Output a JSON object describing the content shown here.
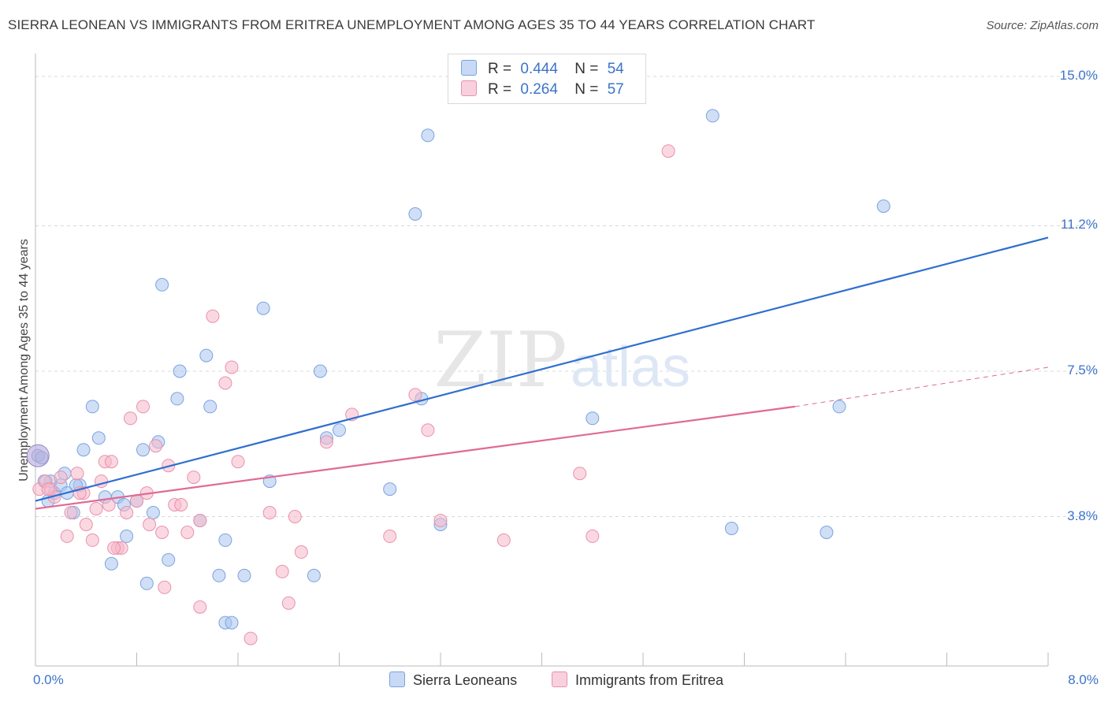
{
  "title": "SIERRA LEONEAN VS IMMIGRANTS FROM ERITREA UNEMPLOYMENT AMONG AGES 35 TO 44 YEARS CORRELATION CHART",
  "source": "Source: ZipAtlas.com",
  "watermark": {
    "zip": "ZIP",
    "atlas": "atlas"
  },
  "legend_top": [
    {
      "r_label": "R =",
      "r_value": "0.444",
      "n_label": "N =",
      "n_value": "54",
      "color": "#a9c4ee"
    },
    {
      "r_label": "R =",
      "r_value": "0.264",
      "n_label": "N =",
      "n_value": "57",
      "color": "#f5b8cb"
    }
  ],
  "legend_bottom": [
    {
      "label": "Sierra Leoneans",
      "color": "#a9c4ee"
    },
    {
      "label": "Immigrants from Eritrea",
      "color": "#f5b8cb"
    }
  ],
  "chart_data": {
    "type": "scatter",
    "title": "SIERRA LEONEAN VS IMMIGRANTS FROM ERITREA UNEMPLOYMENT AMONG AGES 35 TO 44 YEARS CORRELATION CHART",
    "xlabel": "",
    "ylabel": "Unemployment Among Ages 35 to 44 years",
    "xlim": [
      0.0,
      8.0
    ],
    "ylim": [
      0.0,
      15.0
    ],
    "x_tick_labels": {
      "left": "0.0%",
      "right": "8.0%"
    },
    "y_ticks": [
      {
        "value": 15.0,
        "label": "15.0%"
      },
      {
        "value": 11.2,
        "label": "11.2%"
      },
      {
        "value": 7.5,
        "label": "7.5%"
      },
      {
        "value": 3.8,
        "label": "3.8%"
      }
    ],
    "series": [
      {
        "name": "Sierra Leoneans",
        "color": "#a9c4ee",
        "stroke": "#7aa3e0",
        "trend": {
          "x0": 0.0,
          "y0": 4.2,
          "x1": 8.0,
          "y1": 10.9,
          "color": "#2f6fd0"
        },
        "points": [
          [
            0.02,
            5.35
          ],
          [
            0.05,
            5.3
          ],
          [
            0.1,
            4.2
          ],
          [
            0.12,
            4.7
          ],
          [
            0.15,
            4.4
          ],
          [
            0.2,
            4.6
          ],
          [
            0.23,
            4.9
          ],
          [
            0.25,
            4.4
          ],
          [
            0.3,
            3.9
          ],
          [
            0.35,
            4.6
          ],
          [
            0.38,
            5.5
          ],
          [
            0.45,
            6.6
          ],
          [
            0.5,
            5.8
          ],
          [
            0.55,
            4.3
          ],
          [
            0.6,
            2.6
          ],
          [
            0.65,
            4.3
          ],
          [
            0.7,
            4.1
          ],
          [
            0.72,
            3.3
          ],
          [
            0.8,
            4.2
          ],
          [
            0.85,
            5.5
          ],
          [
            0.88,
            2.1
          ],
          [
            0.93,
            3.9
          ],
          [
            0.97,
            5.7
          ],
          [
            1.0,
            9.7
          ],
          [
            1.05,
            2.7
          ],
          [
            1.12,
            6.8
          ],
          [
            1.14,
            7.5
          ],
          [
            1.3,
            3.7
          ],
          [
            1.35,
            7.9
          ],
          [
            1.38,
            6.6
          ],
          [
            1.45,
            2.3
          ],
          [
            1.5,
            3.2
          ],
          [
            1.5,
            1.1
          ],
          [
            1.55,
            1.1
          ],
          [
            1.65,
            2.3
          ],
          [
            1.8,
            9.1
          ],
          [
            1.85,
            4.7
          ],
          [
            2.2,
            2.3
          ],
          [
            2.25,
            7.5
          ],
          [
            2.3,
            5.8
          ],
          [
            2.4,
            6.0
          ],
          [
            2.8,
            4.5
          ],
          [
            3.0,
            11.5
          ],
          [
            3.05,
            6.8
          ],
          [
            3.1,
            13.5
          ],
          [
            3.2,
            3.6
          ],
          [
            4.4,
            6.3
          ],
          [
            5.35,
            14.0
          ],
          [
            5.5,
            3.5
          ],
          [
            6.25,
            3.4
          ],
          [
            6.35,
            6.6
          ],
          [
            6.7,
            11.7
          ],
          [
            0.07,
            4.7
          ],
          [
            0.32,
            4.6
          ]
        ]
      },
      {
        "name": "Immigrants from Eritrea",
        "color": "#f5b8cb",
        "stroke": "#ea91ac",
        "trend": {
          "x0": 0.0,
          "y0": 4.0,
          "x1": 6.0,
          "y1": 6.6,
          "x2": 8.0,
          "y2": 7.6,
          "color": "#e06a93"
        },
        "points": [
          [
            0.03,
            4.5
          ],
          [
            0.08,
            4.7
          ],
          [
            0.12,
            4.5
          ],
          [
            0.15,
            4.3
          ],
          [
            0.2,
            4.8
          ],
          [
            0.25,
            3.3
          ],
          [
            0.28,
            3.9
          ],
          [
            0.33,
            4.9
          ],
          [
            0.38,
            4.4
          ],
          [
            0.4,
            3.6
          ],
          [
            0.45,
            3.2
          ],
          [
            0.48,
            4.0
          ],
          [
            0.52,
            4.7
          ],
          [
            0.55,
            5.2
          ],
          [
            0.58,
            4.1
          ],
          [
            0.6,
            5.2
          ],
          [
            0.65,
            3.0
          ],
          [
            0.68,
            3.0
          ],
          [
            0.72,
            3.9
          ],
          [
            0.75,
            6.3
          ],
          [
            0.8,
            4.2
          ],
          [
            0.85,
            6.6
          ],
          [
            0.88,
            4.4
          ],
          [
            0.9,
            3.6
          ],
          [
            0.95,
            5.6
          ],
          [
            1.0,
            3.4
          ],
          [
            1.02,
            2.0
          ],
          [
            1.05,
            5.1
          ],
          [
            1.1,
            4.1
          ],
          [
            1.15,
            4.1
          ],
          [
            1.2,
            3.4
          ],
          [
            1.25,
            4.8
          ],
          [
            1.3,
            1.5
          ],
          [
            1.3,
            3.7
          ],
          [
            1.4,
            8.9
          ],
          [
            1.5,
            7.2
          ],
          [
            1.55,
            7.6
          ],
          [
            1.6,
            5.2
          ],
          [
            1.7,
            0.7
          ],
          [
            1.85,
            3.9
          ],
          [
            1.95,
            2.4
          ],
          [
            2.0,
            1.6
          ],
          [
            2.05,
            3.8
          ],
          [
            2.1,
            2.9
          ],
          [
            2.3,
            5.7
          ],
          [
            2.5,
            6.4
          ],
          [
            2.8,
            3.3
          ],
          [
            3.0,
            6.9
          ],
          [
            3.1,
            6.0
          ],
          [
            3.2,
            3.7
          ],
          [
            3.7,
            3.2
          ],
          [
            4.3,
            4.9
          ],
          [
            4.4,
            3.3
          ],
          [
            5.0,
            13.1
          ],
          [
            0.1,
            4.5
          ],
          [
            0.35,
            4.4
          ],
          [
            0.62,
            3.0
          ]
        ]
      }
    ]
  }
}
